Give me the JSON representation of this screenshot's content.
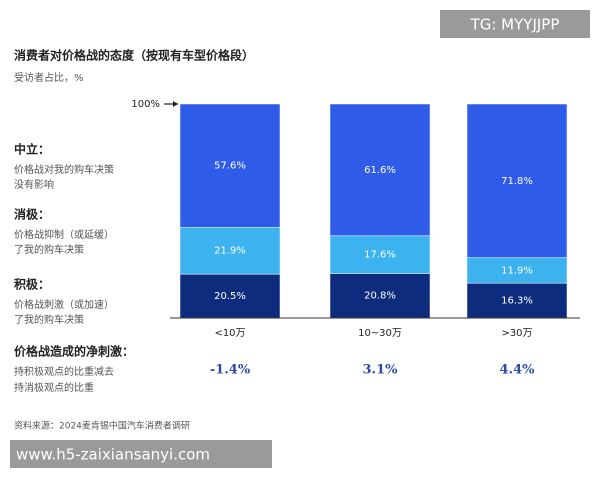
{
  "chart_data": {
    "type": "stacked_bar",
    "title": "消费者对价格战的态度（按现有车型价格段）",
    "subtitle": "受访者占比，%",
    "categories": [
      "<10万",
      "10~30万",
      ">30万"
    ],
    "ylim": [
      0,
      100
    ],
    "yticks": [
      {
        "value": 100,
        "label": "100%"
      }
    ],
    "series": [
      {
        "name": "积极：",
        "description": [
          "价格战刺激（或加速）",
          "了我的购车决策"
        ],
        "color": "#0e2c7e",
        "values": [
          20.5,
          20.8,
          16.3
        ],
        "value_labels": [
          "20.5%",
          "20.8%",
          "16.3%"
        ]
      },
      {
        "name": "消极：",
        "description": [
          "价格战抑制（或延缓）",
          "了我的购车决策"
        ],
        "color": "#3cb3ee",
        "values": [
          21.9,
          17.6,
          11.9
        ],
        "value_labels": [
          "21.9%",
          "17.6%",
          "11.9%"
        ]
      },
      {
        "name": "中立：",
        "description": [
          "价格战对我的购车决策",
          "没有影响"
        ],
        "color": "#2e5ce8",
        "values": [
          57.6,
          61.6,
          71.8
        ],
        "value_labels": [
          "57.6%",
          "61.6%",
          "71.8%"
        ]
      }
    ],
    "net": {
      "name": "价格战造成的净刺激：",
      "description": [
        "持积极观点的比重减去",
        "持消极观点的比重"
      ],
      "values": [
        -1.4,
        3.1,
        4.4
      ],
      "value_labels": [
        "-1.4%",
        "3.1%",
        "4.4%"
      ]
    },
    "source": "资料来源：2024麦肯锡中国汽车消费者调研"
  },
  "watermarks": [
    "TG: MYYJJPP",
    "www.h5-zaixiansanyi.com"
  ]
}
